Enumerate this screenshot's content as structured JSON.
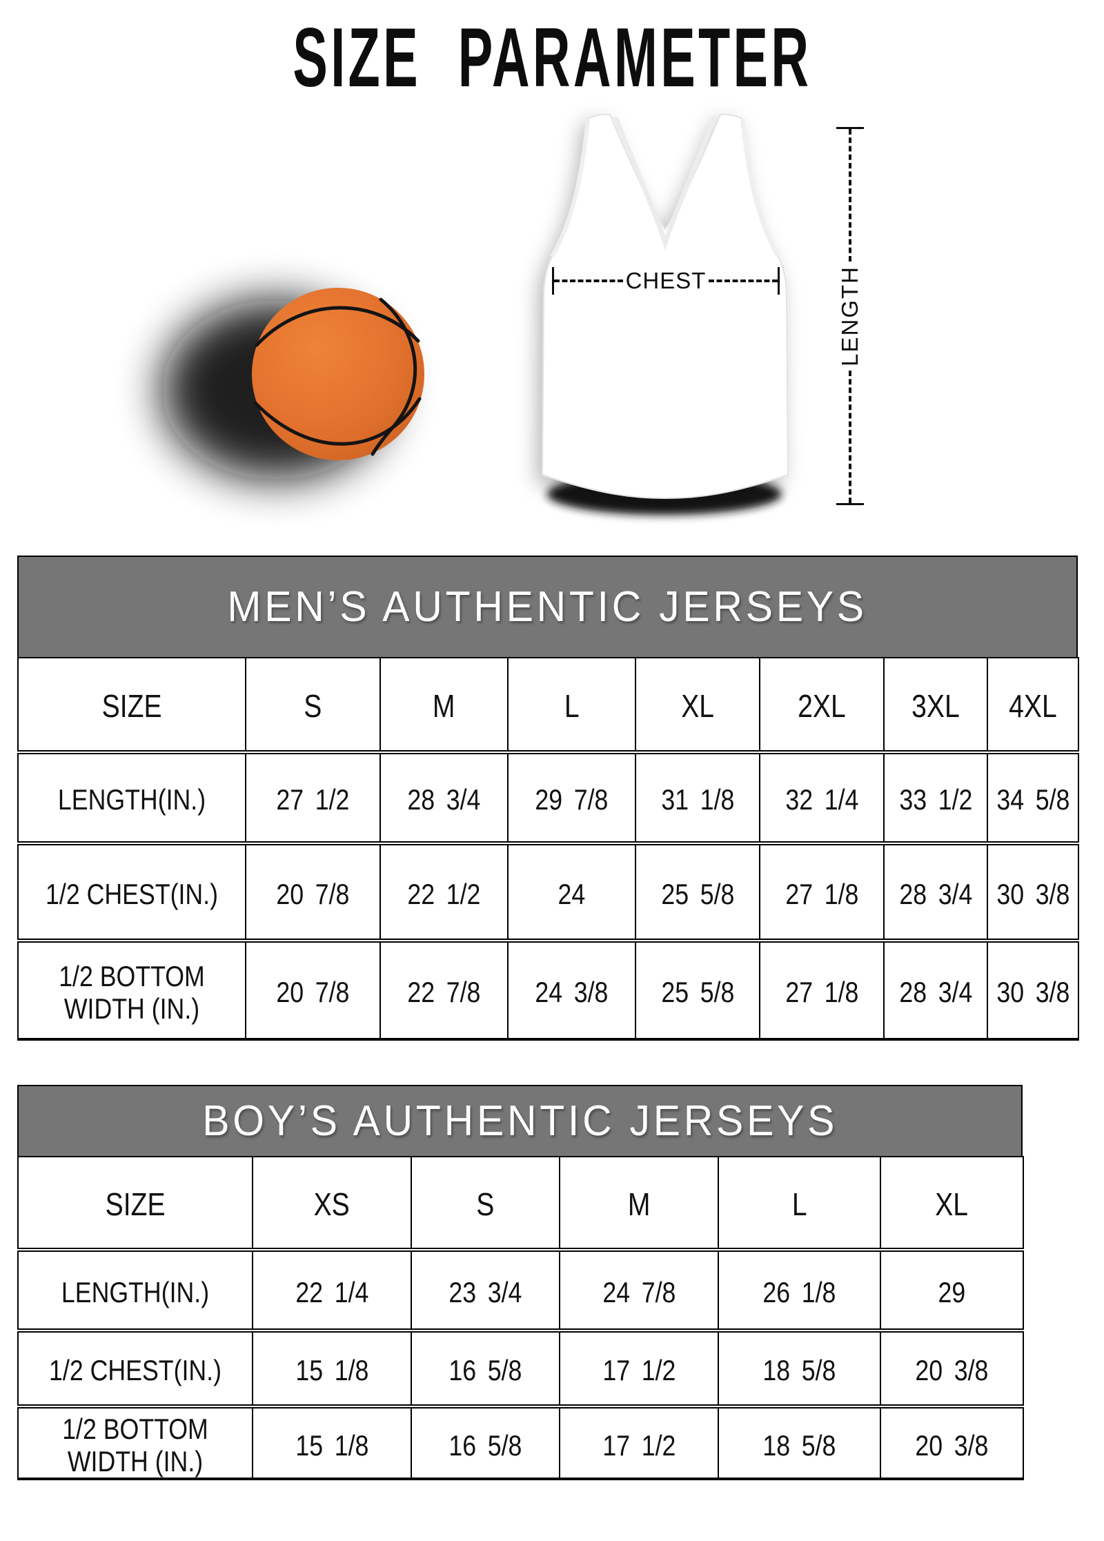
{
  "page": {
    "title": "SIZE PARAMETER"
  },
  "diagram": {
    "chest_label": "CHEST",
    "length_label": "LENGTH"
  },
  "colors": {
    "band_gray": "#767676",
    "border_black": "#000000",
    "ball_orange": "#e2712e",
    "ball_orange_light": "#ef8338",
    "ball_orange_dark": "#d2641f",
    "title_text": "#0d0d0d",
    "band_title_text": "#ffffff"
  },
  "tables": [
    {
      "title": "MEN’S AUTHENTIC JERSEYS",
      "columns": [
        "SIZE",
        "S",
        "M",
        "L",
        "XL",
        "2XL",
        "3XL",
        "4XL"
      ],
      "rows": [
        {
          "label": "LENGTH(IN.)",
          "values": [
            "27 1/2",
            "28 3/4",
            "29 7/8",
            "31 1/8",
            "32 1/4",
            "33 1/2",
            "34 5/8"
          ]
        },
        {
          "label": "1/2 CHEST(IN.)",
          "values": [
            "20 7/8",
            "22 1/2",
            "24",
            "25 5/8",
            "27 1/8",
            "28 3/4",
            "30 3/8"
          ]
        },
        {
          "label": "1/2 BOTTOM WIDTH (IN.)",
          "values": [
            "20 7/8",
            "22 7/8",
            "24 3/8",
            "25 5/8",
            "27 1/8",
            "28 3/4",
            "30 3/8"
          ]
        }
      ]
    },
    {
      "title": "BOY’S AUTHENTIC JERSEYS",
      "columns": [
        "SIZE",
        "XS",
        "S",
        "M",
        "L",
        "XL"
      ],
      "rows": [
        {
          "label": "LENGTH(IN.)",
          "values": [
            "22 1/4",
            "23 3/4",
            "24 7/8",
            "26 1/8",
            "29"
          ]
        },
        {
          "label": "1/2 CHEST(IN.)",
          "values": [
            "15 1/8",
            "16 5/8",
            "17 1/2",
            "18 5/8",
            "20 3/8"
          ]
        },
        {
          "label": "1/2 BOTTOM WIDTH (IN.)",
          "values": [
            "15 1/8",
            "16 5/8",
            "17 1/2",
            "18 5/8",
            "20 3/8"
          ]
        }
      ]
    }
  ]
}
